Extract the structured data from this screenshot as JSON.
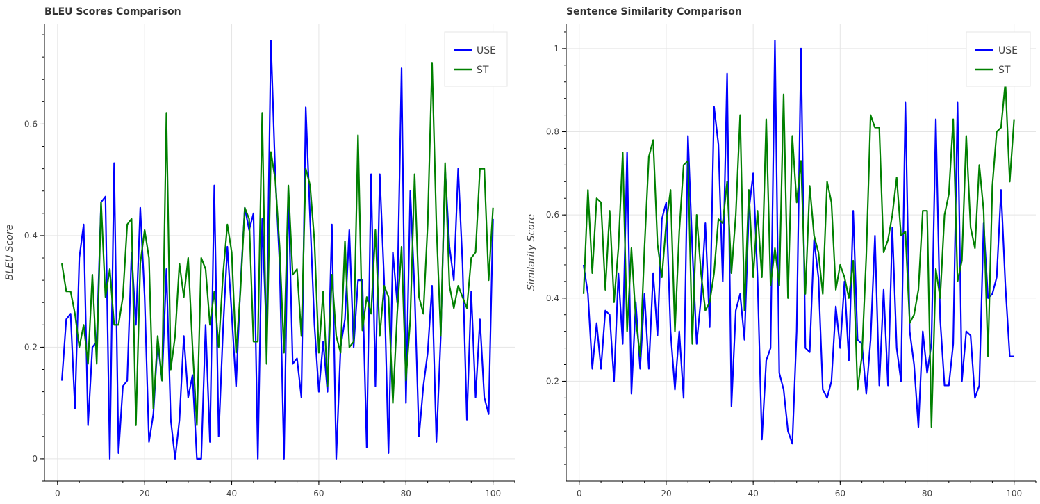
{
  "chart_data": [
    {
      "type": "line",
      "title": "BLEU Scores Comparison",
      "xlabel": "",
      "ylabel": "BLEU Score",
      "xlim": [
        -3,
        105
      ],
      "ylim": [
        -0.04,
        0.78
      ],
      "x_ticks": [
        0,
        20,
        40,
        60,
        80,
        100
      ],
      "y_ticks": [
        0,
        0.2,
        0.4,
        0.6
      ],
      "x_tick_labels": [
        "0",
        "20",
        "40",
        "60",
        "80",
        "100"
      ],
      "y_tick_labels": [
        "0",
        "0.2",
        "0.4",
        "0.6"
      ],
      "grid": true,
      "legend_position": "top-right",
      "series": [
        {
          "name": "USE",
          "color": "#0000ff",
          "values": [
            0.14,
            0.25,
            0.26,
            0.09,
            0.36,
            0.42,
            0.06,
            0.2,
            0.21,
            0.46,
            0.47,
            0.0,
            0.53,
            0.01,
            0.13,
            0.14,
            0.37,
            0.24,
            0.45,
            0.29,
            0.03,
            0.08,
            0.21,
            0.14,
            0.34,
            0.07,
            0.0,
            0.07,
            0.22,
            0.11,
            0.15,
            0.0,
            0.0,
            0.24,
            0.03,
            0.49,
            0.04,
            0.23,
            0.38,
            0.26,
            0.13,
            0.31,
            0.45,
            0.41,
            0.44,
            0.0,
            0.43,
            0.22,
            0.75,
            0.51,
            0.35,
            0.0,
            0.48,
            0.17,
            0.18,
            0.11,
            0.63,
            0.43,
            0.24,
            0.12,
            0.21,
            0.12,
            0.42,
            0.0,
            0.2,
            0.25,
            0.41,
            0.2,
            0.32,
            0.32,
            0.02,
            0.51,
            0.13,
            0.51,
            0.32,
            0.01,
            0.37,
            0.28,
            0.7,
            0.1,
            0.48,
            0.3,
            0.04,
            0.13,
            0.19,
            0.31,
            0.03,
            0.22,
            0.52,
            0.38,
            0.32,
            0.52,
            0.35,
            0.07,
            0.3,
            0.11,
            0.25,
            0.11,
            0.08,
            0.43
          ]
        },
        {
          "name": "ST",
          "color": "#008000",
          "values": [
            0.35,
            0.3,
            0.3,
            0.26,
            0.2,
            0.24,
            0.17,
            0.33,
            0.17,
            0.46,
            0.29,
            0.34,
            0.24,
            0.24,
            0.29,
            0.42,
            0.43,
            0.06,
            0.35,
            0.41,
            0.36,
            0.09,
            0.22,
            0.14,
            0.62,
            0.16,
            0.22,
            0.35,
            0.29,
            0.36,
            0.2,
            0.06,
            0.36,
            0.34,
            0.24,
            0.3,
            0.2,
            0.33,
            0.42,
            0.37,
            0.19,
            0.3,
            0.45,
            0.43,
            0.21,
            0.21,
            0.62,
            0.17,
            0.55,
            0.5,
            0.38,
            0.19,
            0.49,
            0.33,
            0.34,
            0.22,
            0.52,
            0.49,
            0.39,
            0.19,
            0.3,
            0.13,
            0.33,
            0.22,
            0.19,
            0.39,
            0.2,
            0.21,
            0.58,
            0.23,
            0.29,
            0.26,
            0.41,
            0.22,
            0.31,
            0.29,
            0.1,
            0.26,
            0.38,
            0.14,
            0.25,
            0.51,
            0.29,
            0.26,
            0.42,
            0.71,
            0.42,
            0.22,
            0.53,
            0.31,
            0.27,
            0.31,
            0.29,
            0.27,
            0.36,
            0.37,
            0.52,
            0.52,
            0.32,
            0.45
          ]
        }
      ]
    },
    {
      "type": "line",
      "title": "Sentence Similarity Comparison",
      "xlabel": "",
      "ylabel": "Similarity Score",
      "xlim": [
        -3,
        105
      ],
      "ylim": [
        -0.04,
        1.06
      ],
      "x_ticks": [
        0,
        20,
        40,
        60,
        80,
        100
      ],
      "y_ticks": [
        0.2,
        0.4,
        0.6,
        0.8,
        1.0
      ],
      "x_tick_labels": [
        "0",
        "20",
        "40",
        "60",
        "80",
        "100"
      ],
      "y_tick_labels": [
        "0.2",
        "0.4",
        "0.6",
        "0.8",
        "1"
      ],
      "grid": true,
      "legend_position": "top-right",
      "series": [
        {
          "name": "USE",
          "color": "#0000ff",
          "values": [
            0.48,
            0.41,
            0.23,
            0.34,
            0.23,
            0.37,
            0.36,
            0.2,
            0.46,
            0.29,
            0.75,
            0.17,
            0.39,
            0.23,
            0.41,
            0.23,
            0.46,
            0.31,
            0.59,
            0.63,
            0.32,
            0.18,
            0.32,
            0.16,
            0.79,
            0.52,
            0.29,
            0.4,
            0.58,
            0.33,
            0.86,
            0.77,
            0.44,
            0.94,
            0.14,
            0.37,
            0.41,
            0.3,
            0.61,
            0.7,
            0.45,
            0.06,
            0.25,
            0.28,
            1.02,
            0.22,
            0.18,
            0.08,
            0.05,
            0.32,
            1.0,
            0.28,
            0.27,
            0.54,
            0.45,
            0.18,
            0.16,
            0.2,
            0.38,
            0.28,
            0.44,
            0.25,
            0.61,
            0.3,
            0.29,
            0.17,
            0.3,
            0.55,
            0.19,
            0.42,
            0.19,
            0.57,
            0.28,
            0.2,
            0.87,
            0.32,
            0.24,
            0.09,
            0.32,
            0.22,
            0.29,
            0.83,
            0.35,
            0.19,
            0.19,
            0.29,
            0.87,
            0.2,
            0.32,
            0.31,
            0.16,
            0.19,
            0.58,
            0.4,
            0.41,
            0.45,
            0.66,
            0.43,
            0.26,
            0.26
          ]
        },
        {
          "name": "ST",
          "color": "#008000",
          "values": [
            0.41,
            0.66,
            0.46,
            0.64,
            0.63,
            0.42,
            0.61,
            0.39,
            0.52,
            0.75,
            0.32,
            0.52,
            0.35,
            0.26,
            0.52,
            0.74,
            0.78,
            0.53,
            0.45,
            0.58,
            0.66,
            0.32,
            0.56,
            0.72,
            0.73,
            0.29,
            0.6,
            0.46,
            0.37,
            0.39,
            0.46,
            0.59,
            0.58,
            0.68,
            0.46,
            0.6,
            0.84,
            0.37,
            0.66,
            0.45,
            0.61,
            0.45,
            0.83,
            0.43,
            0.52,
            0.43,
            0.89,
            0.4,
            0.79,
            0.63,
            0.73,
            0.41,
            0.67,
            0.55,
            0.51,
            0.41,
            0.68,
            0.63,
            0.42,
            0.48,
            0.45,
            0.4,
            0.49,
            0.18,
            0.26,
            0.5,
            0.84,
            0.81,
            0.81,
            0.51,
            0.54,
            0.6,
            0.69,
            0.55,
            0.56,
            0.34,
            0.36,
            0.42,
            0.61,
            0.61,
            0.09,
            0.47,
            0.4,
            0.6,
            0.65,
            0.83,
            0.44,
            0.49,
            0.79,
            0.57,
            0.52,
            0.72,
            0.61,
            0.26,
            0.67,
            0.8,
            0.81,
            0.92,
            0.68,
            0.83
          ]
        }
      ]
    }
  ]
}
